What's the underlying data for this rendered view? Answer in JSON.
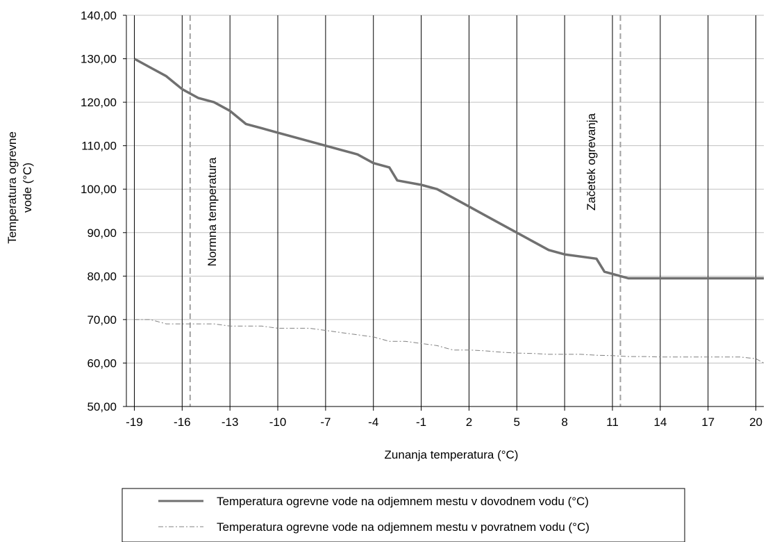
{
  "chart_data": {
    "type": "line",
    "xlabel": "Zunanja temperatura (°C)",
    "ylabel_lines": [
      "Temperatura ogrevne",
      "vode (°C)"
    ],
    "xlim": [
      -19.5,
      20.5
    ],
    "ylim": [
      50,
      140
    ],
    "x_ticks": [
      -19,
      -16,
      -13,
      -10,
      -7,
      -4,
      -1,
      2,
      5,
      8,
      11,
      14,
      17,
      20
    ],
    "y_ticks": [
      "50,00",
      "60,00",
      "70,00",
      "80,00",
      "90,00",
      "100,00",
      "110,00",
      "120,00",
      "130,00",
      "140,00"
    ],
    "y_tick_values": [
      50,
      60,
      70,
      80,
      90,
      100,
      110,
      120,
      130,
      140
    ],
    "grid": {
      "horizontal": true,
      "vertical": true
    },
    "legend_position": "bottom",
    "series": [
      {
        "name": "Temperatura ogrevne vode na odjemnem mestu v dovodnem vodu (°C)",
        "style": "solid-thick",
        "color": "#707070",
        "points": [
          [
            -19,
            130
          ],
          [
            -18,
            128
          ],
          [
            -17,
            126
          ],
          [
            -16,
            123
          ],
          [
            -15,
            121
          ],
          [
            -14,
            120
          ],
          [
            -13,
            118
          ],
          [
            -12,
            115
          ],
          [
            -11,
            114
          ],
          [
            -10,
            113
          ],
          [
            -9,
            112
          ],
          [
            -8,
            111
          ],
          [
            -7,
            110
          ],
          [
            -6,
            109
          ],
          [
            -5,
            108
          ],
          [
            -4,
            106
          ],
          [
            -3,
            105
          ],
          [
            -2.5,
            102
          ],
          [
            -1,
            101
          ],
          [
            0,
            100
          ],
          [
            1,
            98
          ],
          [
            2,
            96
          ],
          [
            3,
            94
          ],
          [
            4,
            92
          ],
          [
            5,
            90
          ],
          [
            6,
            88
          ],
          [
            7,
            86
          ],
          [
            8,
            85
          ],
          [
            9,
            84.5
          ],
          [
            10,
            84
          ],
          [
            10.5,
            81
          ],
          [
            11,
            80.5
          ],
          [
            12,
            79.5
          ],
          [
            13,
            79.5
          ],
          [
            14,
            79.5
          ],
          [
            15,
            79.5
          ],
          [
            16,
            79.5
          ],
          [
            17,
            79.5
          ],
          [
            18,
            79.5
          ],
          [
            19,
            79.5
          ],
          [
            20,
            79.5
          ],
          [
            20.5,
            79.5
          ]
        ]
      },
      {
        "name": "Temperatura ogrevne vode na odjemnem mestu v povratnem vodu (°C)",
        "style": "dash-dot-thin",
        "color": "#808080",
        "points": [
          [
            -19,
            70
          ],
          [
            -18,
            70
          ],
          [
            -17,
            69
          ],
          [
            -16,
            69
          ],
          [
            -15,
            69
          ],
          [
            -14,
            69
          ],
          [
            -13,
            68.5
          ],
          [
            -12,
            68.5
          ],
          [
            -11,
            68.5
          ],
          [
            -10,
            68
          ],
          [
            -9,
            68
          ],
          [
            -8,
            68
          ],
          [
            -7,
            67.5
          ],
          [
            -6,
            67
          ],
          [
            -5,
            66.5
          ],
          [
            -4,
            66
          ],
          [
            -3,
            65
          ],
          [
            -2,
            65
          ],
          [
            -1,
            64.5
          ],
          [
            0,
            64
          ],
          [
            1,
            63
          ],
          [
            2,
            63
          ],
          [
            3,
            62.8
          ],
          [
            4,
            62.5
          ],
          [
            5,
            62.3
          ],
          [
            6,
            62.2
          ],
          [
            7,
            62
          ],
          [
            8,
            62
          ],
          [
            9,
            62
          ],
          [
            10,
            61.8
          ],
          [
            11,
            61.7
          ],
          [
            12,
            61.5
          ],
          [
            13,
            61.5
          ],
          [
            14,
            61.4
          ],
          [
            15,
            61.4
          ],
          [
            16,
            61.4
          ],
          [
            17,
            61.4
          ],
          [
            18,
            61.4
          ],
          [
            19,
            61.4
          ],
          [
            20,
            61
          ],
          [
            20.5,
            60
          ]
        ]
      }
    ],
    "reference_lines": [
      {
        "x": -15.5,
        "label": "Normna  temperatura"
      },
      {
        "x": 11.5,
        "label": "Začetek ogrevanja"
      }
    ],
    "colors": {
      "grid": "#000000",
      "hgrid": "#c0c0c0",
      "reference": "#a0a0a0"
    }
  }
}
